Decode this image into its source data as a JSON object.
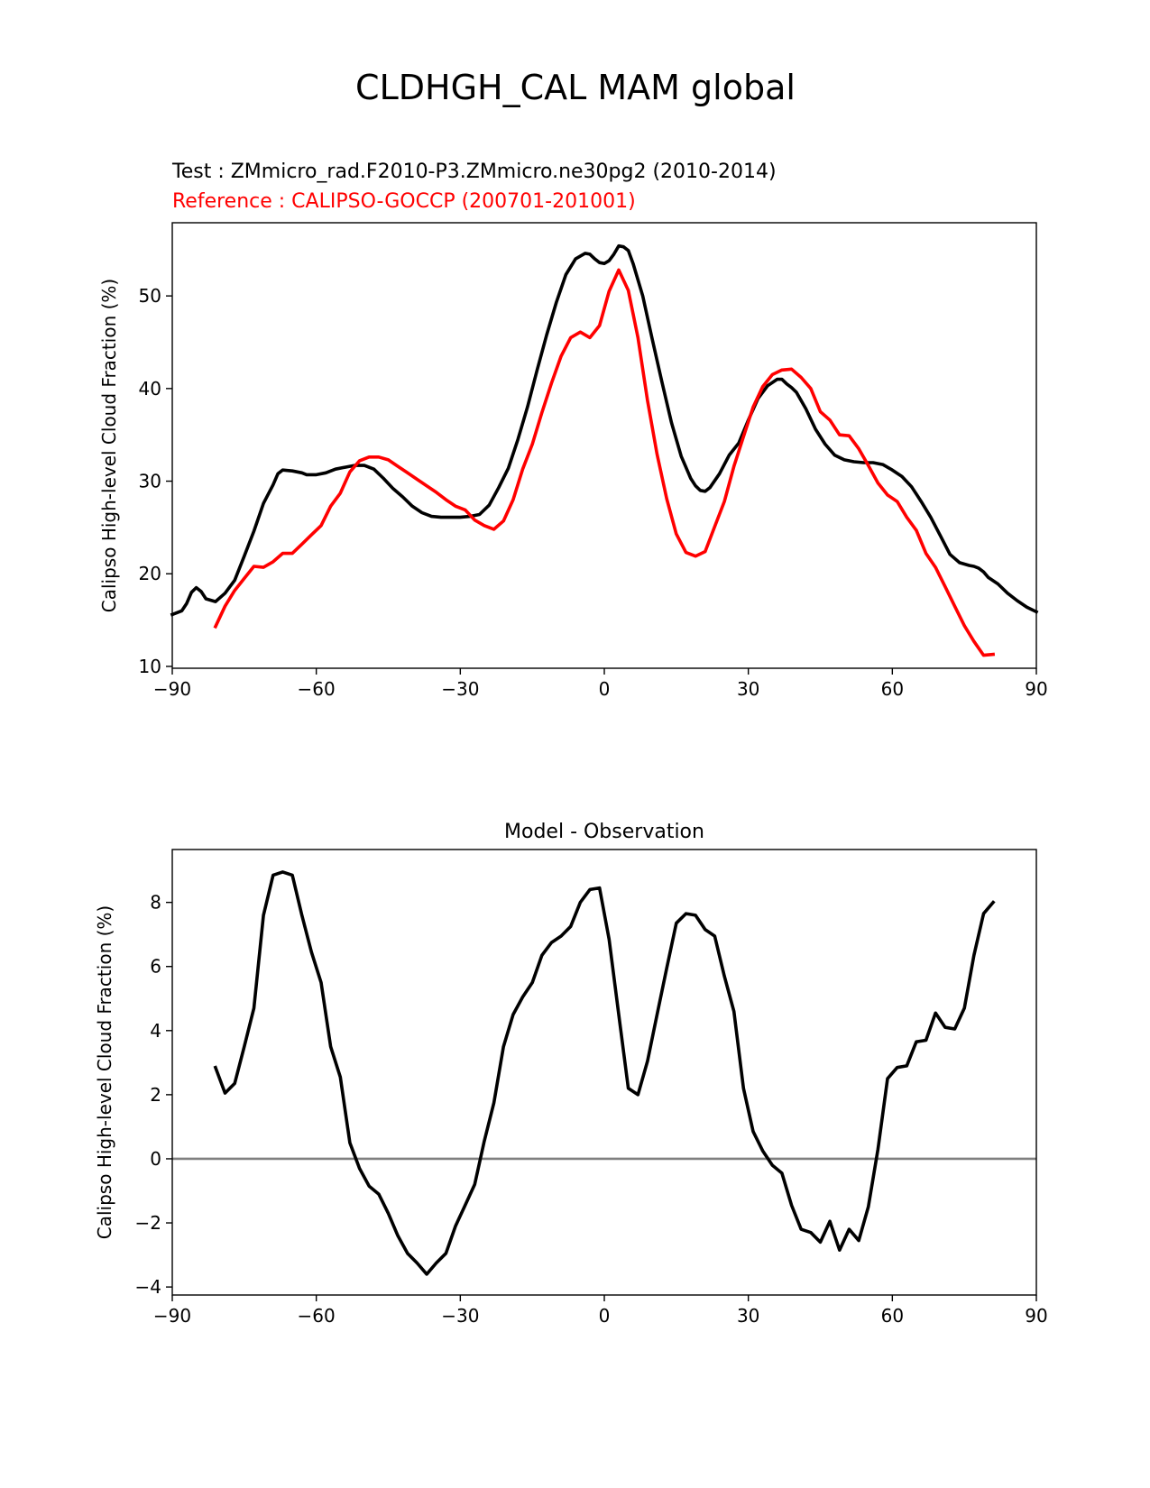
{
  "figure": {
    "title": "CLDHGH_CAL MAM global"
  },
  "chart_data": [
    {
      "type": "line",
      "test_label": "Test : ZMmicro_rad.F2010-P3.ZMmicro.ne30pg2 (2010-2014)",
      "reference_label": "Reference : CALIPSO-GOCCP (200701-201001)",
      "xlabel": "",
      "ylabel": "Calipso High-level Cloud Fraction (%)",
      "xlim": [
        -90,
        90
      ],
      "ylim": [
        9.8,
        57.9
      ],
      "xticks": [
        -90,
        -60,
        -30,
        0,
        30,
        60,
        90
      ],
      "xtick_labels": [
        "−90",
        "−60",
        "−30",
        "0",
        "30",
        "60",
        "90"
      ],
      "yticks": [
        10,
        20,
        30,
        40,
        50
      ],
      "ytick_labels": [
        "10",
        "20",
        "30",
        "40",
        "50"
      ],
      "colors": {
        "test": "#000000",
        "reference": "#ff0000"
      },
      "series": [
        {
          "name": "Test",
          "color": "#000000",
          "x": [
            -90,
            -88,
            -87,
            -86,
            -85,
            -84,
            -83,
            -81,
            -79,
            -77,
            -75,
            -73,
            -71,
            -69,
            -68,
            -67,
            -65,
            -63,
            -62,
            -60,
            -58,
            -56,
            -54,
            -52,
            -50,
            -48,
            -46,
            -44,
            -42,
            -40,
            -38,
            -36,
            -34,
            -32,
            -30,
            -28,
            -26,
            -24,
            -22,
            -20,
            -18,
            -16,
            -14,
            -12,
            -10,
            -8,
            -6,
            -4,
            -3,
            -2,
            -1,
            0,
            1,
            2,
            3,
            4,
            5,
            6,
            8,
            10,
            12,
            14,
            16,
            18,
            19,
            20,
            21,
            22,
            24,
            26,
            28,
            30,
            32,
            34,
            36,
            37,
            38,
            39,
            40,
            42,
            44,
            46,
            48,
            50,
            52,
            54,
            56,
            58,
            60,
            62,
            64,
            66,
            68,
            70,
            72,
            74,
            76,
            77,
            78,
            79,
            80,
            82,
            84,
            86,
            88,
            90
          ],
          "values": [
            15.6,
            16.0,
            16.8,
            18.0,
            18.5,
            18.1,
            17.3,
            17.0,
            17.9,
            19.3,
            21.9,
            24.6,
            27.6,
            29.6,
            30.8,
            31.2,
            31.1,
            30.9,
            30.7,
            30.7,
            30.9,
            31.3,
            31.5,
            31.7,
            31.7,
            31.3,
            30.3,
            29.2,
            28.3,
            27.3,
            26.6,
            26.2,
            26.1,
            26.1,
            26.1,
            26.2,
            26.4,
            27.4,
            29.3,
            31.4,
            34.5,
            38.0,
            42.0,
            45.8,
            49.3,
            52.3,
            54.0,
            54.6,
            54.5,
            54.0,
            53.6,
            53.5,
            53.8,
            54.5,
            55.4,
            55.3,
            54.9,
            53.5,
            50.0,
            45.3,
            40.7,
            36.3,
            32.7,
            30.3,
            29.5,
            29.0,
            28.9,
            29.3,
            30.8,
            32.8,
            34.1,
            36.6,
            38.9,
            40.3,
            41.0,
            41.0,
            40.5,
            40.1,
            39.6,
            37.8,
            35.6,
            34.0,
            32.8,
            32.3,
            32.1,
            32.0,
            32.0,
            31.8,
            31.2,
            30.5,
            29.4,
            27.8,
            26.1,
            24.1,
            22.1,
            21.2,
            20.9,
            20.8,
            20.6,
            20.2,
            19.6,
            18.9,
            17.9,
            17.1,
            16.4,
            15.9
          ]
        },
        {
          "name": "Reference",
          "color": "#ff0000",
          "x": [
            -81,
            -79,
            -77,
            -75,
            -73,
            -71,
            -69,
            -67,
            -65,
            -63,
            -61,
            -59,
            -57,
            -55,
            -53,
            -51,
            -49,
            -47,
            -45,
            -43,
            -41,
            -39,
            -37,
            -35,
            -33,
            -31,
            -29,
            -27,
            -25,
            -23,
            -21,
            -19,
            -17,
            -15,
            -13,
            -11,
            -9,
            -7,
            -5,
            -3,
            -1,
            1,
            3,
            5,
            7,
            9,
            11,
            13,
            15,
            17,
            19,
            21,
            23,
            25,
            27,
            29,
            31,
            33,
            35,
            37,
            39,
            41,
            43,
            45,
            47,
            49,
            51,
            53,
            55,
            57,
            59,
            61,
            63,
            65,
            67,
            69,
            71,
            73,
            75,
            77,
            79,
            81
          ],
          "values": [
            14.3,
            16.5,
            18.2,
            19.5,
            20.8,
            20.7,
            21.3,
            22.2,
            22.2,
            23.2,
            24.2,
            25.2,
            27.3,
            28.7,
            31.0,
            32.2,
            32.6,
            32.6,
            32.3,
            31.6,
            30.9,
            30.2,
            29.5,
            28.8,
            28.0,
            27.3,
            26.9,
            25.8,
            25.2,
            24.8,
            25.7,
            28.0,
            31.3,
            34.0,
            37.4,
            40.6,
            43.5,
            45.5,
            46.1,
            45.5,
            46.8,
            50.5,
            52.8,
            50.6,
            45.5,
            38.7,
            32.9,
            28.1,
            24.3,
            22.3,
            21.9,
            22.4,
            25.1,
            27.8,
            31.6,
            34.8,
            38.0,
            40.2,
            41.5,
            42.0,
            42.1,
            41.2,
            40.0,
            37.5,
            36.6,
            35.0,
            34.9,
            33.5,
            31.7,
            29.8,
            28.5,
            27.8,
            26.1,
            24.7,
            22.2,
            20.7,
            18.6,
            16.5,
            14.4,
            12.7,
            11.2,
            11.3
          ]
        }
      ]
    },
    {
      "type": "line",
      "title": "Model - Observation",
      "xlabel": "",
      "ylabel": "Calipso High-level Cloud Fraction (%)",
      "xlim": [
        -90,
        90
      ],
      "ylim": [
        -4.25,
        9.65
      ],
      "xticks": [
        -90,
        -60,
        -30,
        0,
        30,
        60,
        90
      ],
      "xtick_labels": [
        "−90",
        "−60",
        "−30",
        "0",
        "30",
        "60",
        "90"
      ],
      "yticks": [
        -4,
        -2,
        0,
        2,
        4,
        6,
        8
      ],
      "ytick_labels": [
        "−4",
        "−2",
        "0",
        "2",
        "4",
        "6",
        "8"
      ],
      "zero_line_color": "#808080",
      "series": [
        {
          "name": "Model - Observation",
          "color": "#000000",
          "x": [
            -81,
            -79,
            -77,
            -75,
            -73,
            -71,
            -69,
            -67,
            -65,
            -63,
            -61,
            -59,
            -57,
            -55,
            -53,
            -51,
            -49,
            -47,
            -45,
            -43,
            -41,
            -39,
            -37,
            -35,
            -33,
            -31,
            -29,
            -27,
            -25,
            -23,
            -21,
            -19,
            -17,
            -15,
            -13,
            -11,
            -9,
            -7,
            -5,
            -3,
            -1,
            1,
            3,
            5,
            7,
            9,
            11,
            13,
            15,
            17,
            19,
            21,
            23,
            25,
            27,
            29,
            31,
            33,
            35,
            37,
            39,
            41,
            43,
            45,
            47,
            49,
            51,
            53,
            55,
            57,
            59,
            61,
            63,
            65,
            67,
            69,
            71,
            73,
            75,
            77,
            79,
            81
          ],
          "values": [
            2.85,
            2.05,
            2.35,
            3.5,
            4.7,
            7.6,
            8.85,
            8.95,
            8.85,
            7.6,
            6.45,
            5.5,
            3.5,
            2.55,
            0.5,
            -0.3,
            -0.85,
            -1.1,
            -1.7,
            -2.4,
            -2.95,
            -3.25,
            -3.6,
            -3.25,
            -2.95,
            -2.1,
            -1.45,
            -0.8,
            0.55,
            1.75,
            3.5,
            4.5,
            5.05,
            5.5,
            6.35,
            6.75,
            6.95,
            7.25,
            8.0,
            8.4,
            8.45,
            6.85,
            4.5,
            2.2,
            2.0,
            3.05,
            4.5,
            5.95,
            7.35,
            7.65,
            7.6,
            7.15,
            6.95,
            5.7,
            4.6,
            2.2,
            0.85,
            0.25,
            -0.2,
            -0.45,
            -1.45,
            -2.2,
            -2.3,
            -2.6,
            -1.95,
            -2.85,
            -2.2,
            -2.55,
            -1.5,
            0.3,
            2.5,
            2.85,
            2.9,
            3.65,
            3.7,
            4.55,
            4.1,
            4.05,
            4.7,
            6.35,
            7.65,
            8.0
          ]
        }
      ]
    }
  ]
}
